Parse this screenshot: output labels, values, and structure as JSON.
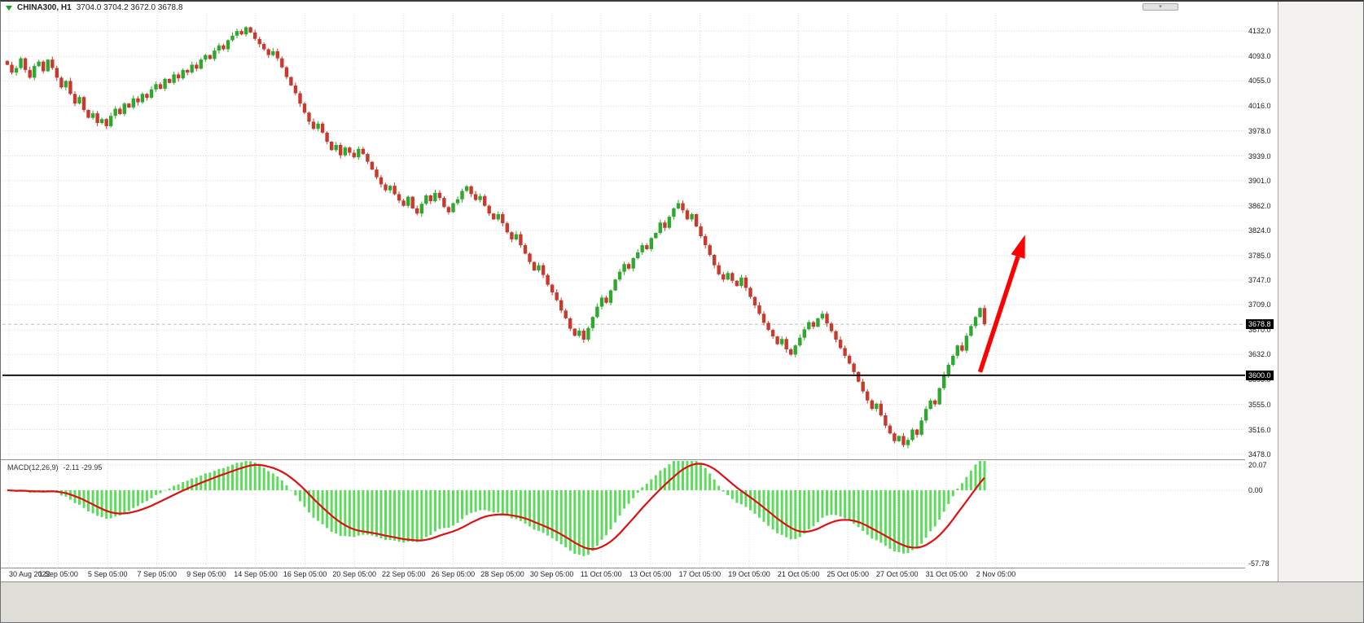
{
  "title_bar": {
    "symbol_period": "CHINA300, H1",
    "ohlc_values": "3704.0 3704.2 3672.0 3678.8"
  },
  "indicator_label": {
    "name": "MACD(12,26,9)",
    "values": "-2.11 -29.95"
  },
  "price_axis": {
    "current_price": "3678.8",
    "hline_price": "3600.0"
  },
  "chart_data": {
    "type": "candlestick",
    "symbol": "CHINA300",
    "timeframe": "H1",
    "last_ohlc": {
      "open": 3704.0,
      "high": 3704.2,
      "low": 3672.0,
      "close": 3678.8
    },
    "y_range": [
      3470,
      4160
    ],
    "y_ticks": [
      4132,
      4093,
      4055,
      4016,
      3978,
      3939,
      3901,
      3862,
      3824,
      3785,
      3747,
      3709,
      3670,
      3632,
      3593,
      3555,
      3516,
      3478
    ],
    "x_labels": [
      "30 Aug 2022",
      "1 Sep 05:00",
      "5 Sep 05:00",
      "7 Sep 05:00",
      "9 Sep 05:00",
      "14 Sep 05:00",
      "16 Sep 05:00",
      "20 Sep 05:00",
      "22 Sep 05:00",
      "26 Sep 05:00",
      "28 Sep 05:00",
      "30 Sep 05:00",
      "11 Oct 05:00",
      "13 Oct 05:00",
      "17 Oct 05:00",
      "19 Oct 05:00",
      "21 Oct 05:00",
      "25 Oct 05:00",
      "27 Oct 05:00",
      "31 Oct 05:00",
      "2 Nov 05:00"
    ],
    "closes": [
      4080,
      4068,
      4075,
      4090,
      4072,
      4060,
      4078,
      4085,
      4070,
      4088,
      4075,
      4060,
      4045,
      4055,
      4035,
      4020,
      4030,
      4010,
      3998,
      4005,
      3990,
      3996,
      3985,
      4001,
      4012,
      4004,
      4020,
      4014,
      4028,
      4022,
      4035,
      4029,
      4042,
      4050,
      4043,
      4058,
      4052,
      4065,
      4059,
      4072,
      4068,
      4080,
      4074,
      4088,
      4095,
      4089,
      4102,
      4110,
      4104,
      4118,
      4125,
      4132,
      4127,
      4138,
      4130,
      4120,
      4112,
      4104,
      4095,
      4101,
      4090,
      4076,
      4061,
      4048,
      4036,
      4020,
      4006,
      3992,
      3981,
      3989,
      3975,
      3961,
      3948,
      3956,
      3940,
      3952,
      3944,
      3937,
      3950,
      3942,
      3930,
      3918,
      3906,
      3895,
      3886,
      3893,
      3880,
      3870,
      3862,
      3876,
      3858,
      3850,
      3865,
      3878,
      3869,
      3882,
      3874,
      3860,
      3852,
      3866,
      3872,
      3885,
      3892,
      3880,
      3871,
      3877,
      3862,
      3850,
      3841,
      3849,
      3835,
      3821,
      3810,
      3818,
      3801,
      3788,
      3775,
      3762,
      3770,
      3755,
      3740,
      3728,
      3716,
      3700,
      3688,
      3672,
      3661,
      3669,
      3655,
      3673,
      3690,
      3706,
      3720,
      3712,
      3731,
      3748,
      3760,
      3772,
      3765,
      3781,
      3790,
      3801,
      3795,
      3812,
      3820,
      3836,
      3828,
      3845,
      3858,
      3866,
      3855,
      3841,
      3849,
      3830,
      3815,
      3801,
      3786,
      3770,
      3756,
      3748,
      3758,
      3746,
      3738,
      3751,
      3735,
      3721,
      3708,
      3695,
      3681,
      3670,
      3660,
      3648,
      3656,
      3640,
      3632,
      3646,
      3658,
      3671,
      3682,
      3675,
      3688,
      3695,
      3680,
      3668,
      3655,
      3642,
      3630,
      3618,
      3605,
      3590,
      3575,
      3561,
      3548,
      3556,
      3538,
      3522,
      3510,
      3498,
      3506,
      3492,
      3500,
      3516,
      3508,
      3530,
      3548,
      3561,
      3555,
      3580,
      3601,
      3616,
      3630,
      3646,
      3638,
      3661,
      3676,
      3690,
      3704,
      3679
    ],
    "hline_value": 3600.0,
    "current_price_value": 3678.8,
    "trend_arrow": {
      "direction": "up",
      "color": "#ff0000",
      "from_bar": 216,
      "from_price": 3605,
      "to_bar": 226,
      "to_price": 3817
    },
    "macd": {
      "params": [
        12,
        26,
        9
      ],
      "display_values": [
        -2.11,
        -29.95
      ],
      "ticks": [
        20.07,
        0.0,
        -57.78
      ],
      "hist_color": "#5ddb5d",
      "signal_color": "#dd1111"
    },
    "colors": {
      "bull": "#2ea82e",
      "bear": "#c93a2e",
      "grid": "#d9d9d9",
      "hline": "#000000",
      "bid_line": "#c0c0c0",
      "badge_bg": "#000000",
      "badge_fg": "#ffffff"
    }
  }
}
